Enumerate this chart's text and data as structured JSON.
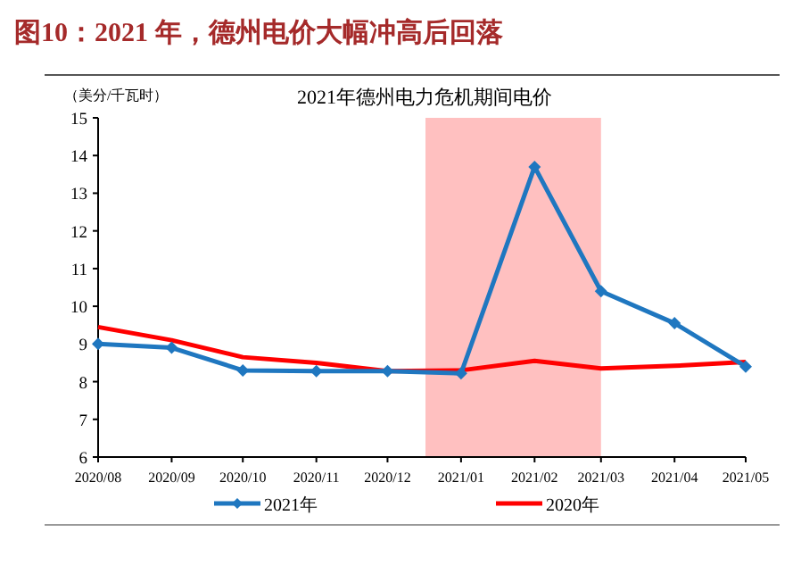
{
  "chart_data": {
    "type": "line",
    "title": "图10：2021 年，德州电价大幅冲高后回落",
    "subtitle": "2021年德州电力危机期间电价",
    "ylabel": "（美分/千瓦时）",
    "x": [
      "2020-08",
      "2020-09",
      "2020-10",
      "2020-11",
      "2020-12",
      "2021-01",
      "2021-02",
      "2021-03",
      "2021-04",
      "2021-05"
    ],
    "series": [
      {
        "name": "2021年",
        "color": "#1f77c0",
        "marker": "diamond",
        "values": [
          9.0,
          8.9,
          8.3,
          8.28,
          8.28,
          8.22,
          13.7,
          10.4,
          9.55,
          8.4
        ]
      },
      {
        "name": "2020年",
        "color": "#ff0000",
        "marker": "none",
        "values": [
          9.45,
          9.1,
          8.65,
          8.5,
          8.28,
          8.3,
          8.55,
          8.35,
          8.42,
          8.52
        ]
      }
    ],
    "xlim": [
      "2020-08",
      "2021-05"
    ],
    "xticks": [
      {
        "value": "2020-08",
        "label": "2020/08"
      },
      {
        "value": "2020-09",
        "label": "2020/09"
      },
      {
        "value": "2020-10",
        "label": "2020/10"
      },
      {
        "value": "2020-11",
        "label": "2020/11"
      },
      {
        "value": "2020-12",
        "label": "2020/12"
      },
      {
        "value": "2021-01",
        "label": "2021/01"
      },
      {
        "value": "2021-02",
        "label": "2021/02"
      },
      {
        "value": "2021-03",
        "label": "2021/03"
      },
      {
        "value": "2021-04",
        "label": "2021/04"
      },
      {
        "value": "2021-05",
        "label": "2021/05"
      }
    ],
    "ylim": [
      6,
      15
    ],
    "yticks": [
      6,
      7,
      8,
      9,
      10,
      11,
      12,
      13,
      14,
      15
    ],
    "bands": [
      {
        "axis": "x",
        "from": "2020-12-17",
        "to": "2021-03",
        "color": "#ffc0c0"
      }
    ],
    "legend": "bottom"
  }
}
